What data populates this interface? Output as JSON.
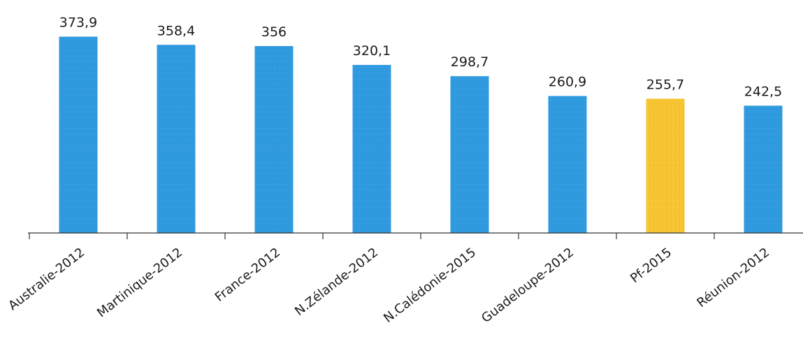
{
  "chart_data": {
    "type": "bar",
    "title": "",
    "xlabel": "",
    "ylabel": "",
    "categories": [
      "Australie-2012",
      "Martinique-2012",
      "France-2012",
      "N.Zélande-2012",
      "N.Calédonie-2015",
      "Guadeloupe-2012",
      "Pf-2015",
      "Réunion-2012"
    ],
    "values": [
      373.9,
      358.4,
      356,
      320.1,
      298.7,
      260.9,
      255.7,
      242.5
    ],
    "value_labels": [
      "373,9",
      "358,4",
      "356",
      "320,1",
      "298,7",
      "260,9",
      "255,7",
      "242,5"
    ],
    "ylim": [
      0,
      380
    ],
    "grid": false,
    "legend": "none",
    "bar_color": "#2f9ae0",
    "highlight_category": "Pf-2015",
    "highlight_color": "#f7c531",
    "axis_color": "#333333"
  }
}
